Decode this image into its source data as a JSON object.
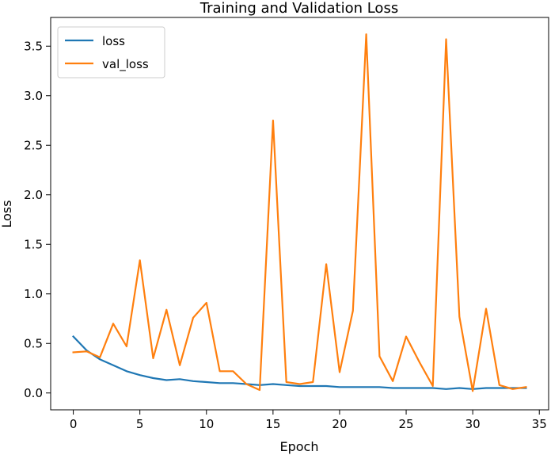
{
  "chart_data": {
    "type": "line",
    "title": "Training and Validation Loss",
    "xlabel": "Epoch",
    "ylabel": "Loss",
    "xlim": [
      -1.7,
      35.7
    ],
    "ylim": [
      -0.17,
      3.79
    ],
    "xticks": [
      0,
      5,
      10,
      15,
      20,
      25,
      30,
      35
    ],
    "yticks": [
      0.0,
      0.5,
      1.0,
      1.5,
      2.0,
      2.5,
      3.0,
      3.5
    ],
    "ytick_labels": [
      "0.0",
      "0.5",
      "1.0",
      "1.5",
      "2.0",
      "2.5",
      "3.0",
      "3.5"
    ],
    "grid": false,
    "legend": "top-left",
    "x": [
      0,
      1,
      2,
      3,
      4,
      5,
      6,
      7,
      8,
      9,
      10,
      11,
      12,
      13,
      14,
      15,
      16,
      17,
      18,
      19,
      20,
      21,
      22,
      23,
      24,
      25,
      26,
      27,
      28,
      29,
      30,
      31,
      32,
      33,
      34
    ],
    "series": [
      {
        "name": "loss",
        "color": "#1f77b4",
        "values": [
          0.57,
          0.43,
          0.34,
          0.28,
          0.22,
          0.18,
          0.15,
          0.13,
          0.14,
          0.12,
          0.11,
          0.1,
          0.1,
          0.09,
          0.08,
          0.09,
          0.08,
          0.07,
          0.07,
          0.07,
          0.06,
          0.06,
          0.06,
          0.06,
          0.05,
          0.05,
          0.05,
          0.05,
          0.04,
          0.05,
          0.04,
          0.05,
          0.05,
          0.05,
          0.05
        ]
      },
      {
        "name": "val_loss",
        "color": "#ff7f0e",
        "values": [
          0.41,
          0.42,
          0.36,
          0.7,
          0.47,
          1.34,
          0.35,
          0.84,
          0.28,
          0.76,
          0.91,
          0.22,
          0.22,
          0.09,
          0.03,
          2.75,
          0.11,
          0.09,
          0.11,
          1.3,
          0.21,
          0.83,
          3.62,
          0.37,
          0.12,
          0.57,
          0.31,
          0.07,
          3.57,
          0.77,
          0.02,
          0.85,
          0.08,
          0.04,
          0.06
        ]
      }
    ]
  }
}
